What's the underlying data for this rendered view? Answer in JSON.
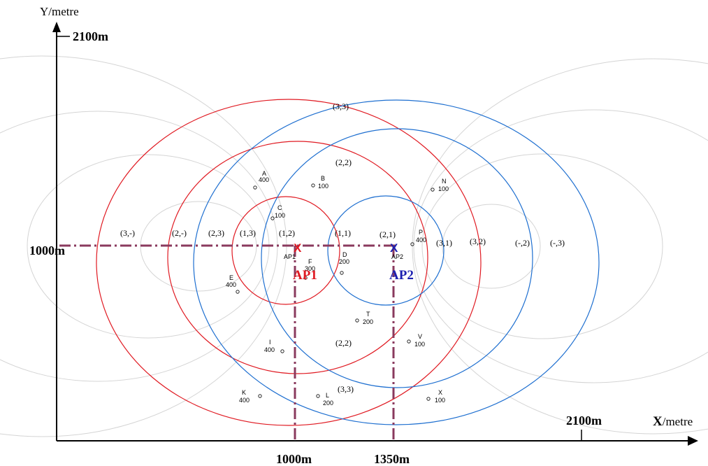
{
  "axes": {
    "y_title": "Y/metre",
    "y_top": "2100m",
    "y_mid": "1000m",
    "x_bold": "X",
    "x_rest": "/metre",
    "x_right": "2100m",
    "x_1000": "1000m",
    "x_1350": "1350m"
  },
  "colors": {
    "ap1": "#e01a22",
    "ap2": "#1e6fd0",
    "grid": "#d4d4d4",
    "dashed": "#8a3a5e",
    "axis": "#000000"
  },
  "access_points": [
    {
      "id": "ap1",
      "mark": "X",
      "small": "AP1",
      "label": "AP1",
      "color": "#e01a22"
    },
    {
      "id": "ap2",
      "mark": "X",
      "small": "AP2",
      "label": "AP2",
      "color": "#1b1fb0"
    }
  ],
  "regions": [
    "(3,3)",
    "(2,2)",
    "(3,-)",
    "(2,-)",
    "(2,3)",
    "(1,3)",
    "(1,2)",
    "(1,1)",
    "(2,1)",
    "(3,1)",
    "(3,2)",
    "(-,2)",
    "(-,3)",
    "(2,2)",
    "(3,3)"
  ],
  "nodes": [
    {
      "letter": "A",
      "value": "400"
    },
    {
      "letter": "B",
      "value": "100"
    },
    {
      "letter": "C",
      "value": "100"
    },
    {
      "letter": "N",
      "value": "100"
    },
    {
      "letter": "P",
      "value": "400"
    },
    {
      "letter": "D",
      "value": "200"
    },
    {
      "letter": "F",
      "value": "300"
    },
    {
      "letter": "E",
      "value": "400"
    },
    {
      "letter": "T",
      "value": "200"
    },
    {
      "letter": "I",
      "value": "400"
    },
    {
      "letter": "V",
      "value": "100"
    },
    {
      "letter": "K",
      "value": "400"
    },
    {
      "letter": "L",
      "value": "200"
    },
    {
      "letter": "X",
      "value": "100"
    }
  ]
}
